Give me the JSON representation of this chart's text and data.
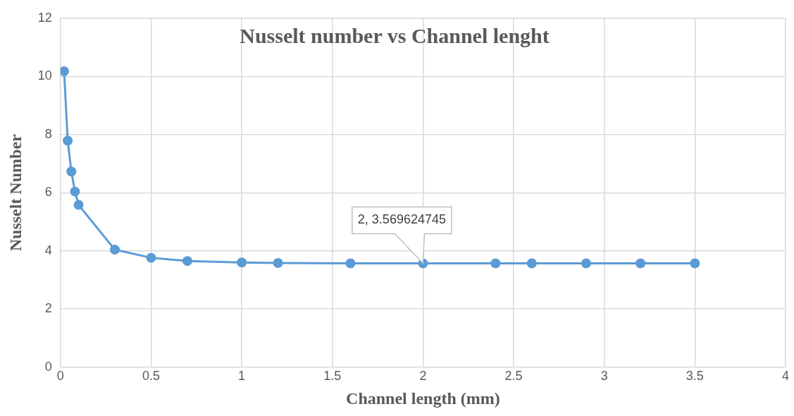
{
  "chart_data": {
    "type": "line",
    "title": "Nusselt number vs Channel lenght",
    "xlabel": "Channel length (mm)",
    "ylabel": "Nusselt Number",
    "x": [
      0.02,
      0.04,
      0.06,
      0.08,
      0.1,
      0.3,
      0.5,
      0.7,
      1,
      1.2,
      1.6,
      2,
      2.4,
      2.6,
      2.9,
      3.2,
      3.5
    ],
    "series": [
      {
        "color": "#5b9bd5",
        "values": [
          10.18,
          7.79,
          6.73,
          6.04,
          5.58,
          4.04,
          3.76,
          3.65,
          3.6,
          3.58,
          3.57,
          3.569624745,
          3.57,
          3.57,
          3.57,
          3.57,
          3.57
        ]
      }
    ],
    "xlim": [
      0,
      4
    ],
    "xticks": [
      0,
      0.5,
      1,
      1.5,
      2,
      2.5,
      3,
      3.5,
      4
    ],
    "ylim": [
      0,
      12
    ],
    "yticks": [
      0,
      2,
      4,
      6,
      8,
      10,
      12
    ],
    "grid": true,
    "legend": false,
    "marker": "circle",
    "line_style": "solid",
    "annotations": [
      {
        "text": "2, 3.569624745",
        "x": 2,
        "y": 3.569624745
      }
    ]
  }
}
